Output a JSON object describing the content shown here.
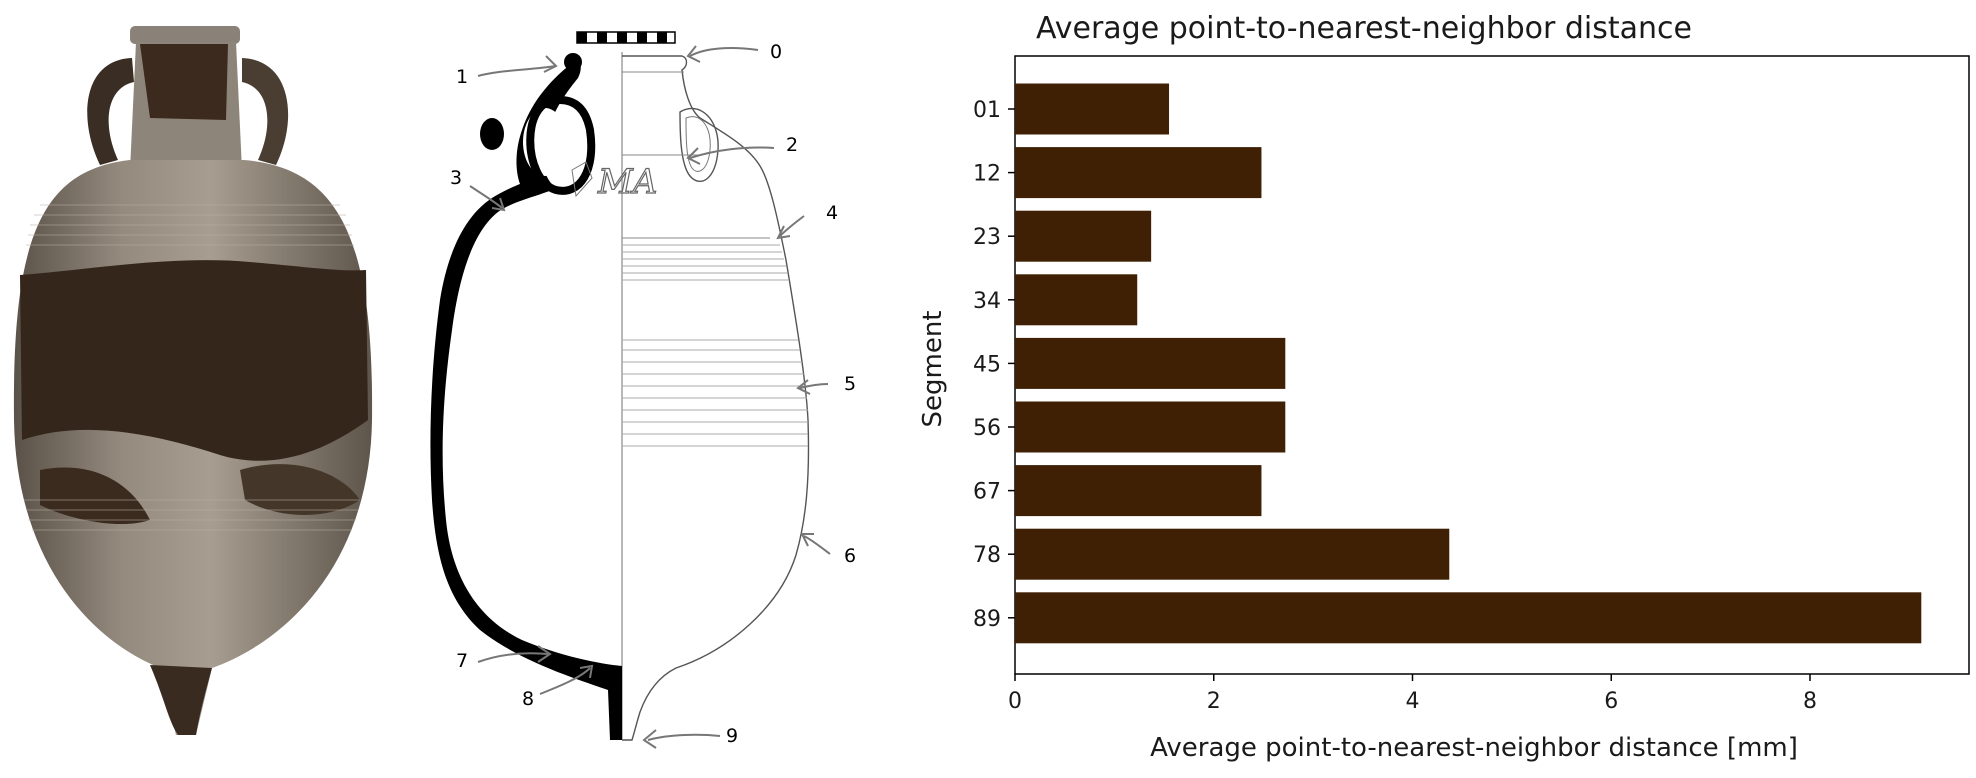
{
  "photo": {
    "description_icon": "amphora-photo"
  },
  "drawing": {
    "point_labels": [
      "0",
      "1",
      "2",
      "3",
      "4",
      "5",
      "6",
      "7",
      "8",
      "9"
    ],
    "stamp_text": "MA",
    "scale_bar_segments": 5
  },
  "chart_data": {
    "type": "bar",
    "orientation": "horizontal",
    "title": "Average point-to-nearest-neighbor distance",
    "xlabel": "Average point-to-nearest-neighbor distance [mm]",
    "ylabel": "Segment",
    "categories": [
      "01",
      "12",
      "23",
      "34",
      "45",
      "56",
      "67",
      "78",
      "89"
    ],
    "values": [
      1.55,
      2.48,
      1.37,
      1.23,
      2.72,
      2.72,
      2.48,
      4.37,
      9.12
    ],
    "xlim": [
      0,
      9.6
    ],
    "xticks": [
      0,
      2,
      4,
      6,
      8
    ],
    "bar_color": "#3f2005",
    "grid": false,
    "legend": "none"
  }
}
